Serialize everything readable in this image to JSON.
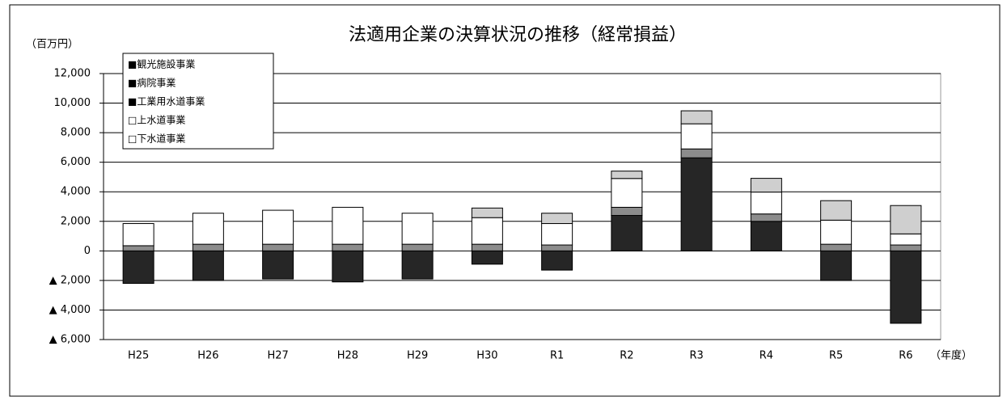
{
  "chart_data": {
    "type": "stacked_bar",
    "title": "法適用企業の決算状況の推移（経常損益）",
    "y_unit": "（百万円）",
    "x_unit": "（年度）",
    "categories": [
      "H25",
      "H26",
      "H27",
      "H28",
      "H29",
      "H30",
      "R1",
      "R2",
      "R3",
      "R4",
      "R5",
      "R6"
    ],
    "series": [
      {
        "name": "■観光施設事業",
        "color": "#000000",
        "values": [
          0,
          0,
          0,
          0,
          0,
          0,
          0,
          0,
          0,
          0,
          0,
          0
        ]
      },
      {
        "name": "■病院事業",
        "color": "#262626",
        "values": [
          -2200,
          -2000,
          -1900,
          -2100,
          -1900,
          -900,
          -1300,
          2400,
          6300,
          2000,
          -2000,
          -4900
        ]
      },
      {
        "name": "■工業用水道事業",
        "color": "#8c8c8c",
        "values": [
          350,
          450,
          450,
          450,
          450,
          450,
          400,
          550,
          600,
          500,
          450,
          400
        ]
      },
      {
        "name": "□上水道事業",
        "color": "#ffffff",
        "values": [
          1500,
          2100,
          2300,
          2500,
          2100,
          1800,
          1450,
          1950,
          1700,
          1480,
          1630,
          750
        ]
      },
      {
        "name": "□下水道事業",
        "color": "#cfcfcf",
        "values": [
          0,
          0,
          0,
          0,
          0,
          650,
          700,
          500,
          880,
          930,
          1320,
          1920
        ]
      }
    ],
    "ylim": [
      -6000,
      12000
    ],
    "yticks": [
      {
        "value": -6000,
        "label": "▲ 6,000"
      },
      {
        "value": -4000,
        "label": "▲ 4,000"
      },
      {
        "value": -2000,
        "label": "▲ 2,000"
      },
      0,
      {
        "value": 2000,
        "label": "2,000"
      },
      {
        "value": 4000,
        "label": "4,000"
      },
      {
        "value": 6000,
        "label": "6,000"
      },
      {
        "value": 8000,
        "label": "8,000"
      },
      {
        "value": 10000,
        "label": "10,000"
      },
      {
        "value": 12000,
        "label": "12,000"
      }
    ],
    "grid": true
  }
}
